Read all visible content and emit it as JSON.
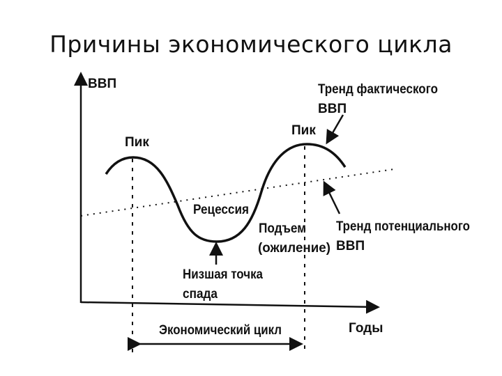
{
  "title": "Причины экономического цикла",
  "diagram": {
    "y_axis_label": "ВВП",
    "x_axis_label": "Годы",
    "peak1_label": "Пик",
    "peak2_label": "Пик",
    "recession_label": "Рецессия",
    "recovery_label_1": "Подъем",
    "recovery_label_2": "(ожиление)",
    "trough_label_1": "Низшая точка",
    "trough_label_2": "спада",
    "actual_trend_label_1": "Тренд фактического",
    "actual_trend_label_2": "ВВП",
    "potential_trend_label_1": "Тренд потенциального",
    "potential_trend_label_2": "ВВП",
    "cycle_label": "Экономический цикл"
  }
}
